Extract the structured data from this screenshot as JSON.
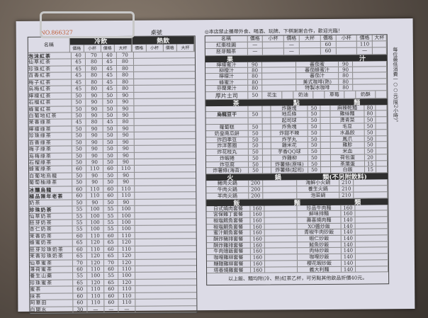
{
  "header": {
    "serial_no": "NO.866327",
    "table_no_label": "桌號",
    "notice": "◎本店禁止攜帶外食、喝酒、玩牌、下棋謝謝合作，歡迎光臨！",
    "side_note": "每位最低消費一○○元(限2小時)。"
  },
  "drinks": {
    "name_header": "名稱",
    "cold_header": "冷飲",
    "hot_header": "熱飲",
    "price_label": "價格",
    "small_label": "小杯",
    "large_label": "大杯",
    "items": [
      [
        "泡沫紅茶",
        "40",
        "70",
        "40",
        "70"
      ],
      [
        "仙草紅茶",
        "45",
        "80",
        "45",
        "80"
      ],
      [
        "珍珠紅茶",
        "45",
        "80",
        "45",
        "80"
      ],
      [
        "百香紅茶",
        "45",
        "80",
        "45",
        "80"
      ],
      [
        "梅子紅茶",
        "45",
        "80",
        "45",
        "80"
      ],
      [
        "烏梅紅茶",
        "45",
        "80",
        "45",
        "80"
      ],
      [
        "檸檬紅茶",
        "50",
        "90",
        "50",
        "90"
      ],
      [
        "石榴紅茶",
        "50",
        "90",
        "50",
        "90"
      ],
      [
        "蜂蜜紅茶",
        "50",
        "90",
        "50",
        "90"
      ],
      [
        "白葡地紅茶",
        "50",
        "90",
        "50",
        "90"
      ],
      [
        "茉香綠茶",
        "45",
        "80",
        "45",
        "80"
      ],
      [
        "檸檬綠茶",
        "50",
        "90",
        "50",
        "90"
      ],
      [
        "珍珠綠茶",
        "50",
        "90",
        "50",
        "90"
      ],
      [
        "百香綠茶",
        "50",
        "90",
        "50",
        "90"
      ],
      [
        "梅子綠茶",
        "50",
        "90",
        "50",
        "90"
      ],
      [
        "烏梅綠茶",
        "50",
        "90",
        "50",
        "90"
      ],
      [
        "石榴綠茶",
        "50",
        "90",
        "50",
        "90"
      ],
      [
        "蜂蜜綠茶",
        "60",
        "110",
        "60",
        "110"
      ],
      [
        "白葡地烏龍",
        "50",
        "90",
        "50",
        "90"
      ],
      [
        "葡萄柚綠茶",
        "50",
        "90",
        "50",
        "90"
      ],
      [
        "冰釀烏龍",
        "60",
        "110",
        "60",
        "110"
      ],
      [
        "極品陳年老茶",
        "60",
        "110",
        "60",
        "110"
      ],
      [
        "奶茶",
        "50",
        "90",
        "50",
        "90"
      ],
      [
        "珍珠奶茶",
        "55",
        "100",
        "55",
        "100"
      ],
      [
        "仙草奶茶",
        "55",
        "100",
        "55",
        "100"
      ],
      [
        "胚芽奶茶",
        "55",
        "100",
        "55",
        "100"
      ],
      [
        "杏仁奶茶",
        "55",
        "100",
        "55",
        "100"
      ],
      [
        "茉香奶茶",
        "60",
        "110",
        "60",
        "110"
      ],
      [
        "蜂蜜奶茶",
        "65",
        "120",
        "65",
        "120"
      ],
      [
        "胚芽珍珠奶茶",
        "60",
        "110",
        "60",
        "110"
      ],
      [
        "茉香珍珠奶茶",
        "65",
        "120",
        "65",
        "120"
      ],
      [
        "仙草蜜茶",
        "70",
        "120",
        "70",
        "120"
      ],
      [
        "薄荷蜜茶",
        "60",
        "110",
        "60",
        "110"
      ],
      [
        "養生山藥",
        "55",
        "100",
        "55",
        "100"
      ],
      [
        "珍珠蜜茶",
        "65",
        "120",
        "65",
        "120"
      ],
      [
        "蜜茶",
        "60",
        "110",
        "60",
        "110"
      ],
      [
        "抹茶",
        "60",
        "110",
        "60",
        "110"
      ],
      [
        "阿華田",
        "60",
        "110",
        "60",
        "110"
      ],
      [
        "白開水",
        "30",
        "—",
        "—",
        "—"
      ]
    ],
    "extra": [
      [
        "紅棗桂圓",
        "—",
        "—",
        "60",
        "110"
      ],
      [
        "胚芽麵茶",
        "—",
        "—",
        "60",
        "—"
      ]
    ]
  },
  "juice": {
    "title_left": "果",
    "title_right": "汁",
    "left": [
      [
        "檸檬蜜汁",
        "90"
      ],
      [
        "柳橙汁",
        "80"
      ],
      [
        "檸檬汁",
        "80"
      ],
      [
        "蜂蜜汁",
        "80"
      ],
      [
        "芬蘭果汁",
        "80"
      ]
    ],
    "right": [
      [
        "蕃茄蜜",
        "90"
      ],
      [
        "蕃茄蜂蜜汁",
        "90"
      ],
      [
        "蕃茄汁",
        "80"
      ],
      [
        "美式咖啡(熱)",
        "80"
      ],
      [
        "特製冰咖啡",
        "80"
      ]
    ]
  },
  "toast": {
    "name": "厚片土司",
    "price": "50",
    "flavors": [
      "花生",
      "奶油",
      "草莓",
      "奶酥"
    ]
  },
  "snacks": {
    "titles": [
      "茶",
      "點",
      "麵"
    ],
    "featured": [
      "烏龍豆干",
      "50"
    ],
    "col1": [
      [
        "蘿蔔糕",
        "50"
      ],
      [
        "奶皇南瓜餅",
        "50"
      ],
      [
        "炸四季豆",
        "50"
      ],
      [
        "炸洋蔥圈",
        "50"
      ],
      [
        "炸花枝丸",
        "50"
      ],
      [
        "炸蝦捲",
        "50"
      ],
      [
        "炸豆腐",
        "50"
      ],
      [
        "炸薯條(海苔)",
        "50"
      ]
    ],
    "col2": [
      [
        "炸雞塊",
        "50"
      ],
      [
        "地瓜條",
        "50"
      ],
      [
        "起司球",
        "50"
      ],
      [
        "炸魚塊",
        "50"
      ],
      [
        "炸甜不辣",
        "50"
      ],
      [
        "炸芋丸",
        "50"
      ],
      [
        "雞米花",
        "50"
      ],
      [
        "芋香QQ球",
        "50"
      ],
      [
        "炸雞柳",
        "50"
      ],
      [
        "炸薯條(原味)",
        "50"
      ],
      [
        "炸薯條(起司)",
        "50"
      ]
    ],
    "col3": [
      [
        "麻辣乾麵",
        "80"
      ],
      [
        "雞絲麵",
        "80"
      ],
      [
        "燙青菜",
        "50"
      ],
      [
        "毛豆",
        "50"
      ],
      [
        "水晶餃",
        "50"
      ],
      [
        "鳳爪",
        "50"
      ],
      [
        "雞胗",
        "50"
      ],
      [
        "米血",
        "50"
      ],
      [
        "荷包蛋",
        "20"
      ],
      [
        "茶葉蛋",
        "15"
      ],
      [
        "白飯",
        "15"
      ]
    ]
  },
  "hotpot": {
    "titles": [
      "火",
      "鍋",
      "類(不另附飲料)"
    ],
    "left": [
      [
        "豬肉火鍋",
        "200"
      ],
      [
        "牛肉火鍋",
        "200"
      ],
      [
        "羊肉火鍋",
        "200"
      ]
    ],
    "right": [
      [
        "海鮮小火鍋",
        "210"
      ],
      [
        "養生火鍋",
        "210"
      ],
      [
        "泡菜鍋",
        "210"
      ]
    ]
  },
  "meals": {
    "titles": [
      "飯",
      "麵",
      "類"
    ],
    "left": [
      [
        "日式燒肉套餐",
        "160"
      ],
      [
        "宮保雞丁套餐",
        "160"
      ],
      [
        "椒塩鱈魚套餐",
        "160"
      ],
      [
        "椒塩鯛魚套餐",
        "160"
      ],
      [
        "蜜汁鯛魚套餐",
        "160"
      ],
      [
        "酥炸豬排套餐",
        "160"
      ],
      [
        "酥炸雞排套餐",
        "160"
      ],
      [
        "牛肉燴飯套餐",
        "160"
      ],
      [
        "咖哩雞柳套餐",
        "160"
      ],
      [
        "糖醋雞柳套餐",
        "160"
      ],
      [
        "塔香燒雞套餐",
        "160"
      ]
    ],
    "right": [
      [
        "珍品牛肉麵",
        "160"
      ],
      [
        "鮮味排麵",
        "160"
      ],
      [
        "壽喜燒肉麵",
        "140"
      ],
      [
        "XO醬炒飯",
        "140"
      ],
      [
        "青椒牛肉炒飯",
        "140"
      ],
      [
        "蝦仁炒飯",
        "140"
      ],
      [
        "鮭魚炒飯",
        "140"
      ],
      [
        "肉絲炒飯",
        "140"
      ],
      [
        "咖哩炒飯",
        "140"
      ],
      [
        "櫻花蝦炒飯",
        "140"
      ],
      [
        "義大利麵",
        "140"
      ]
    ],
    "footer": "以上飯、麵均附(冷、熱)紅茶乙杯，可另點其他飲品折價40元。"
  }
}
